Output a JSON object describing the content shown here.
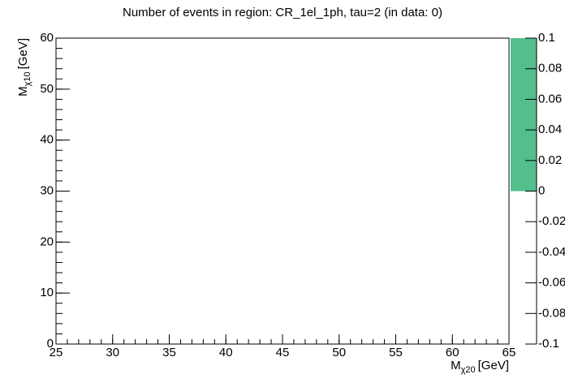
{
  "chart_data": {
    "type": "heatmap",
    "title": "Number of events in region: CR_1el_1ph, tau=2 (in data: 0)",
    "x_label": {
      "main": "M",
      "sub": "χ20",
      "unit": "[GeV]"
    },
    "y_label": {
      "main": "M",
      "sub": "χ10",
      "unit": "[GeV]"
    },
    "xlim": [
      25,
      65
    ],
    "xticks": [
      25,
      30,
      35,
      40,
      45,
      50,
      55,
      60,
      65
    ],
    "ylim": [
      0,
      60
    ],
    "yticks": [
      0,
      10,
      20,
      30,
      40,
      50,
      60
    ],
    "zlim": [
      -0.1,
      0.1
    ],
    "zticks": [
      0.1,
      0.08,
      0.06,
      0.04,
      0.02,
      0,
      -0.02,
      -0.04,
      -0.06,
      -0.08,
      -0.1
    ],
    "colorbar": {
      "color": "#52bf8c",
      "filled_range": [
        0,
        0.1
      ]
    }
  }
}
